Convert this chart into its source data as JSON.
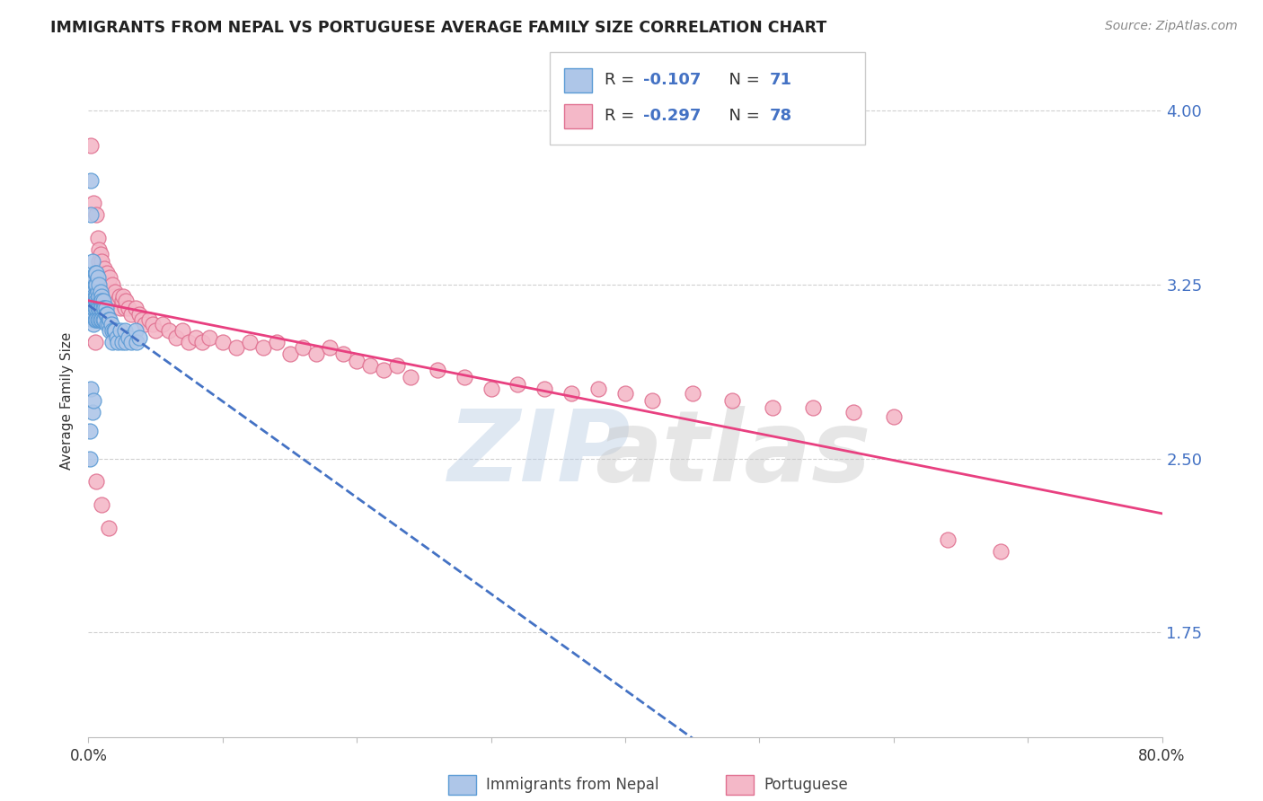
{
  "title": "IMMIGRANTS FROM NEPAL VS PORTUGUESE AVERAGE FAMILY SIZE CORRELATION CHART",
  "source": "Source: ZipAtlas.com",
  "ylabel": "Average Family Size",
  "yticks": [
    1.75,
    2.5,
    3.25,
    4.0
  ],
  "xlim": [
    0.0,
    0.8
  ],
  "ylim": [
    1.3,
    4.2
  ],
  "nepal_color": "#aec6e8",
  "nepal_edge": "#5b9bd5",
  "portuguese_color": "#f4b8c8",
  "portuguese_edge": "#e07090",
  "nepal_line_color": "#4472c4",
  "portuguese_line_color": "#e84080",
  "nepal_x": [
    0.001,
    0.002,
    0.002,
    0.003,
    0.003,
    0.003,
    0.004,
    0.004,
    0.004,
    0.004,
    0.005,
    0.005,
    0.005,
    0.005,
    0.005,
    0.006,
    0.006,
    0.006,
    0.006,
    0.006,
    0.006,
    0.007,
    0.007,
    0.007,
    0.007,
    0.007,
    0.008,
    0.008,
    0.008,
    0.008,
    0.009,
    0.009,
    0.009,
    0.009,
    0.01,
    0.01,
    0.01,
    0.01,
    0.011,
    0.011,
    0.011,
    0.012,
    0.012,
    0.013,
    0.013,
    0.014,
    0.014,
    0.015,
    0.015,
    0.016,
    0.016,
    0.017,
    0.018,
    0.018,
    0.019,
    0.02,
    0.021,
    0.022,
    0.024,
    0.025,
    0.027,
    0.028,
    0.03,
    0.032,
    0.035,
    0.036,
    0.038,
    0.001,
    0.002,
    0.003,
    0.004
  ],
  "nepal_y": [
    2.5,
    3.55,
    3.7,
    3.35,
    3.22,
    3.1,
    3.28,
    3.2,
    3.15,
    3.08,
    3.3,
    3.25,
    3.2,
    3.15,
    3.1,
    3.3,
    3.25,
    3.2,
    3.18,
    3.15,
    3.1,
    3.28,
    3.22,
    3.18,
    3.15,
    3.1,
    3.25,
    3.2,
    3.15,
    3.1,
    3.22,
    3.18,
    3.15,
    3.1,
    3.2,
    3.18,
    3.15,
    3.1,
    3.18,
    3.15,
    3.1,
    3.15,
    3.1,
    3.15,
    3.12,
    3.12,
    3.08,
    3.1,
    3.08,
    3.1,
    3.05,
    3.08,
    3.05,
    3.0,
    3.05,
    3.05,
    3.02,
    3.0,
    3.05,
    3.0,
    3.05,
    3.0,
    3.02,
    3.0,
    3.05,
    3.0,
    3.02,
    2.62,
    2.8,
    2.7,
    2.75
  ],
  "portuguese_x": [
    0.002,
    0.004,
    0.006,
    0.007,
    0.008,
    0.008,
    0.009,
    0.01,
    0.011,
    0.012,
    0.013,
    0.014,
    0.015,
    0.016,
    0.017,
    0.018,
    0.019,
    0.02,
    0.022,
    0.023,
    0.024,
    0.025,
    0.026,
    0.027,
    0.028,
    0.03,
    0.032,
    0.035,
    0.038,
    0.04,
    0.042,
    0.045,
    0.048,
    0.05,
    0.055,
    0.06,
    0.065,
    0.07,
    0.075,
    0.08,
    0.085,
    0.09,
    0.1,
    0.11,
    0.12,
    0.13,
    0.14,
    0.15,
    0.16,
    0.17,
    0.18,
    0.19,
    0.2,
    0.21,
    0.22,
    0.23,
    0.24,
    0.26,
    0.28,
    0.3,
    0.32,
    0.34,
    0.36,
    0.38,
    0.4,
    0.42,
    0.45,
    0.48,
    0.51,
    0.54,
    0.57,
    0.6,
    0.64,
    0.68,
    0.005,
    0.006,
    0.01,
    0.015
  ],
  "portuguese_y": [
    3.85,
    3.6,
    3.55,
    3.45,
    3.4,
    3.35,
    3.38,
    3.35,
    3.3,
    3.32,
    3.28,
    3.3,
    3.25,
    3.28,
    3.22,
    3.25,
    3.2,
    3.22,
    3.18,
    3.2,
    3.15,
    3.18,
    3.2,
    3.15,
    3.18,
    3.15,
    3.12,
    3.15,
    3.12,
    3.1,
    3.08,
    3.1,
    3.08,
    3.05,
    3.08,
    3.05,
    3.02,
    3.05,
    3.0,
    3.02,
    3.0,
    3.02,
    3.0,
    2.98,
    3.0,
    2.98,
    3.0,
    2.95,
    2.98,
    2.95,
    2.98,
    2.95,
    2.92,
    2.9,
    2.88,
    2.9,
    2.85,
    2.88,
    2.85,
    2.8,
    2.82,
    2.8,
    2.78,
    2.8,
    2.78,
    2.75,
    2.78,
    2.75,
    2.72,
    2.72,
    2.7,
    2.68,
    2.15,
    2.1,
    3.0,
    2.4,
    2.3,
    2.2
  ]
}
